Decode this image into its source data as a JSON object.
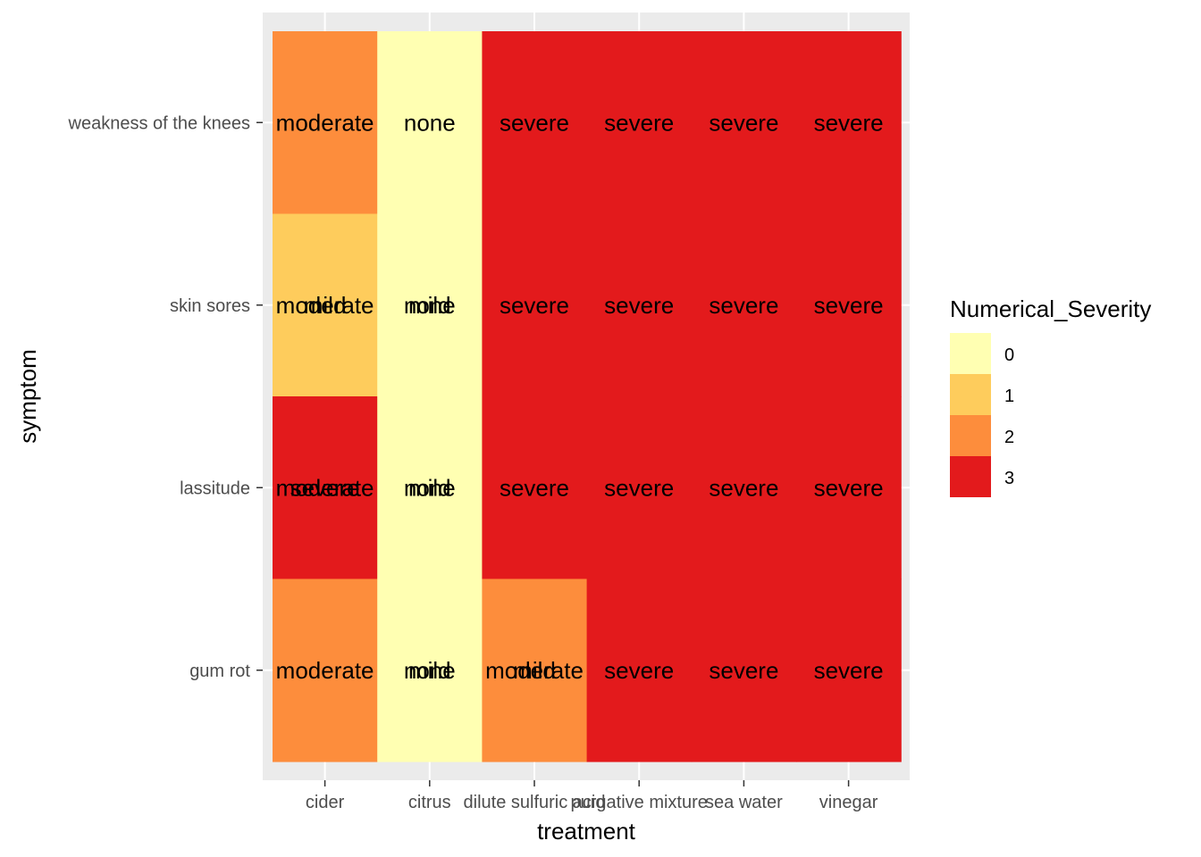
{
  "chart_data": {
    "type": "heatmap",
    "xlabel": "treatment",
    "ylabel": "symptom",
    "x_categories": [
      "cider",
      "citrus",
      "dilute sulfuric acid",
      "purgative mixture",
      "sea water",
      "vinegar"
    ],
    "y_categories": [
      "weakness of the knees",
      "skin sores",
      "lassitude",
      "gum rot"
    ],
    "fill_values": [
      [
        2,
        0,
        3,
        3,
        3,
        3
      ],
      [
        1,
        0,
        3,
        3,
        3,
        3
      ],
      [
        3,
        0,
        3,
        3,
        3,
        3
      ],
      [
        2,
        0,
        2,
        3,
        3,
        3
      ]
    ],
    "cell_labels": [
      [
        [
          "moderate"
        ],
        [
          "none"
        ],
        [
          "severe"
        ],
        [
          "severe"
        ],
        [
          "severe"
        ],
        [
          "severe"
        ]
      ],
      [
        [
          "moderate",
          "mild"
        ],
        [
          "none",
          "mild"
        ],
        [
          "severe"
        ],
        [
          "severe"
        ],
        [
          "severe"
        ],
        [
          "severe"
        ]
      ],
      [
        [
          "moderate",
          "severe"
        ],
        [
          "none",
          "mild"
        ],
        [
          "severe"
        ],
        [
          "severe"
        ],
        [
          "severe"
        ],
        [
          "severe"
        ]
      ],
      [
        [
          "moderate"
        ],
        [
          "none",
          "mild"
        ],
        [
          "moderate",
          "mild"
        ],
        [
          "severe"
        ],
        [
          "severe"
        ],
        [
          "severe"
        ]
      ]
    ],
    "legend": {
      "title": "Numerical_Severity",
      "position": "right",
      "levels": [
        {
          "label": "0",
          "color": "#FFFFB2"
        },
        {
          "label": "1",
          "color": "#FECC5C"
        },
        {
          "label": "2",
          "color": "#FD8D3C"
        },
        {
          "label": "3",
          "color": "#E31A1C"
        }
      ]
    },
    "grid": true,
    "panel_background": "#EBEBEB",
    "grid_color": "#FFFFFF"
  }
}
